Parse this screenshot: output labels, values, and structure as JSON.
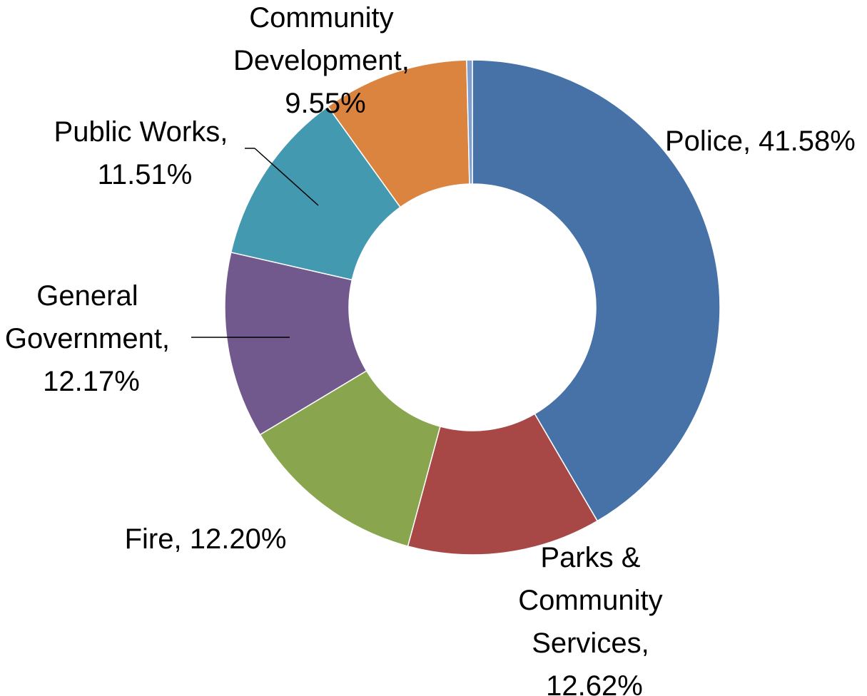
{
  "chart_data": {
    "type": "pie",
    "variant": "donut",
    "title": "",
    "legend": "none",
    "slices": [
      {
        "key": "police",
        "label_lines": [
          "Police, 41.58%"
        ],
        "value": 41.58,
        "color": "#4672A7"
      },
      {
        "key": "parks",
        "label_lines": [
          "Parks &",
          "Community",
          "Services,",
          "12.62%"
        ],
        "value": 12.62,
        "color": "#A84846"
      },
      {
        "key": "fire",
        "label_lines": [
          "Fire, 12.20%"
        ],
        "value": 12.2,
        "color": "#89A64E"
      },
      {
        "key": "general-government",
        "label_lines": [
          "General",
          "Government,",
          "12.17%"
        ],
        "value": 12.17,
        "color": "#71598E"
      },
      {
        "key": "public-works",
        "label_lines": [
          "Public Works,",
          "11.51%"
        ],
        "value": 11.51,
        "color": "#4399AF"
      },
      {
        "key": "community-development",
        "label_lines": [
          "Community",
          "Development,",
          "9.55%"
        ],
        "value": 9.55,
        "color": "#DA843F"
      },
      {
        "key": "other",
        "label_lines": [],
        "value": 0.37,
        "color": "#7F9FD0"
      }
    ]
  }
}
